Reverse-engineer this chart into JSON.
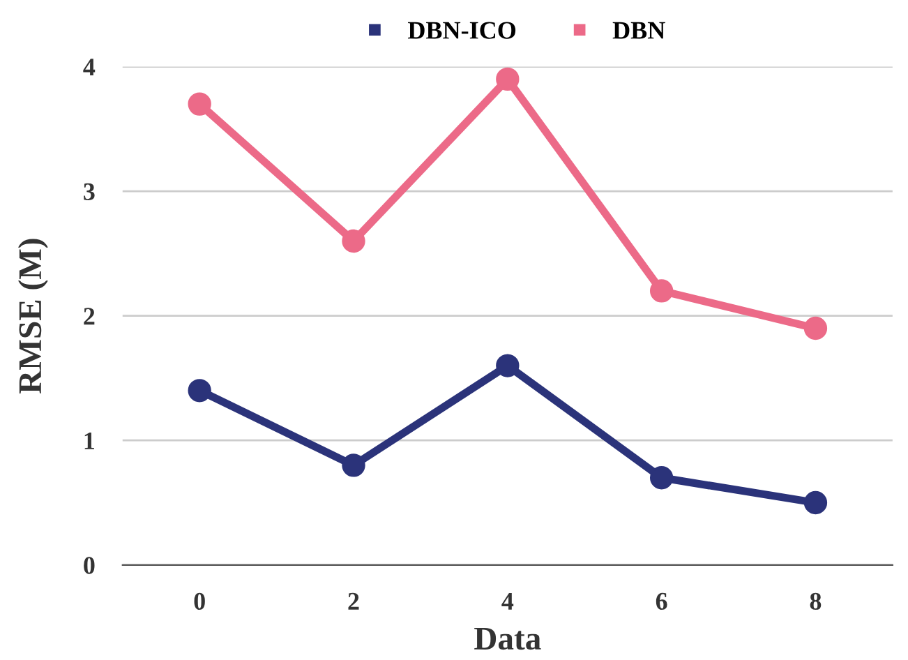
{
  "chart_data": {
    "type": "line",
    "xlabel": "Data",
    "ylabel": "RMSE (M)",
    "x": [
      0,
      2,
      4,
      6,
      8
    ],
    "series": [
      {
        "name": "DBN-ICO",
        "color": "#2b337a",
        "values": [
          1.4,
          0.8,
          1.6,
          0.7,
          0.5
        ]
      },
      {
        "name": "DBN",
        "color": "#ec6a88",
        "values": [
          3.7,
          2.6,
          3.9,
          2.2,
          1.9
        ]
      }
    ],
    "xlim": [
      -1,
      9
    ],
    "xticks": [
      0,
      2,
      4,
      6,
      8
    ],
    "ylim": [
      0,
      4
    ],
    "yticks": [
      0,
      1,
      2,
      3,
      4
    ],
    "grid": "y",
    "legend": "top",
    "marker": "circle",
    "line_style": "solid"
  }
}
